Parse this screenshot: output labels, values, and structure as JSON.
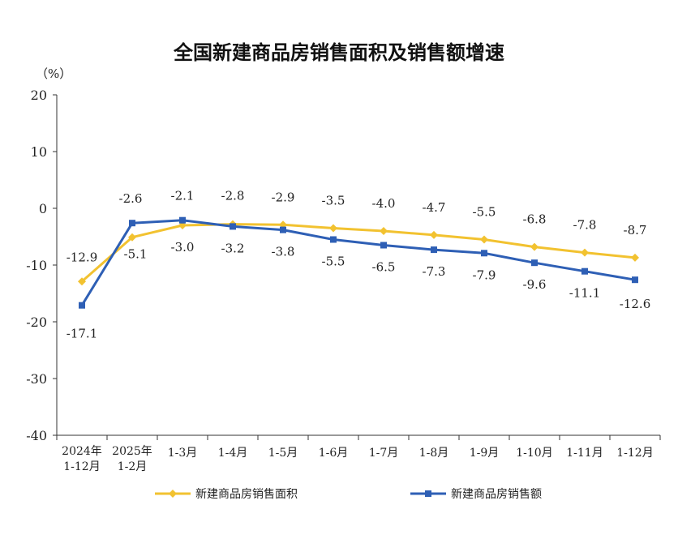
{
  "chart_data": {
    "type": "line",
    "title": "全国新建商品房销售面积及销售额增速",
    "unit_label": "（%）",
    "ylim": [
      -40,
      20
    ],
    "yticks": [
      "20",
      "10",
      "0",
      "-10",
      "-20",
      "-30",
      "-40"
    ],
    "ytick_values": [
      20,
      10,
      0,
      -10,
      -20,
      -30,
      -40
    ],
    "categories": [
      [
        "2024年",
        "1-12月"
      ],
      [
        "2025年",
        "1-2月"
      ],
      [
        "1-3月"
      ],
      [
        "1-4月"
      ],
      [
        "1-5月"
      ],
      [
        "1-6月"
      ],
      [
        "1-7月"
      ],
      [
        "1-8月"
      ],
      [
        "1-9月"
      ],
      [
        "1-10月"
      ],
      [
        "1-11月"
      ],
      [
        "1-12月"
      ]
    ],
    "legend_position": "bottom",
    "series": [
      {
        "name": "新建商品房销售面积",
        "color": "#f2c230",
        "values": [
          -12.9,
          -5.1,
          -3.0,
          -2.8,
          -2.9,
          -3.5,
          -4.0,
          -4.7,
          -5.5,
          -6.8,
          -7.8,
          -8.7
        ],
        "labels": [
          "-12.9",
          "-5.1",
          "-3.0",
          "-2.8",
          "-2.9",
          "-3.5",
          "-4.0",
          "-4.7",
          "-5.5",
          "-6.8",
          "-7.8",
          "-8.7"
        ]
      },
      {
        "name": "新建商品房销售额",
        "color": "#2e5fb5",
        "values": [
          -17.1,
          -2.6,
          -2.1,
          -3.2,
          -3.8,
          -5.5,
          -6.5,
          -7.3,
          -7.9,
          -9.6,
          -11.1,
          -12.6
        ],
        "labels": [
          "-17.1",
          "-2.6",
          "-2.1",
          "-3.2",
          "-3.8",
          "-5.5",
          "-6.5",
          "-7.3",
          "-7.9",
          "-9.6",
          "-11.1",
          "-12.6"
        ]
      }
    ]
  }
}
